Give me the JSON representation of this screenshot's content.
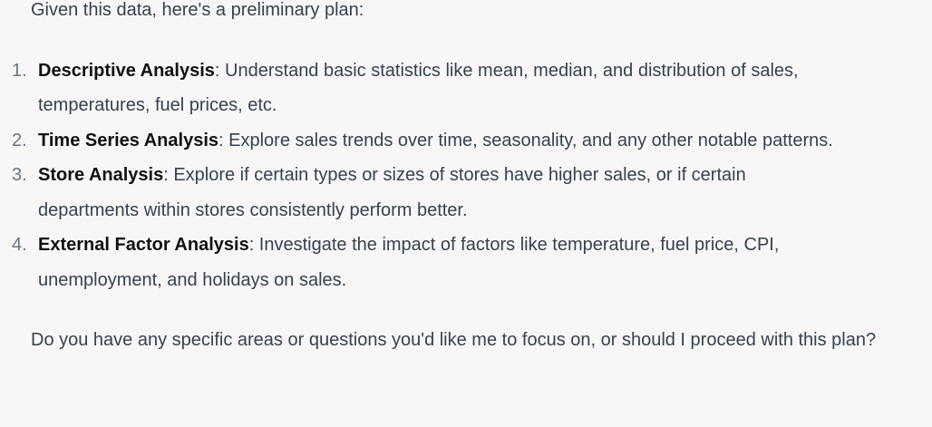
{
  "message": {
    "intro": "Given this data, here's a preliminary plan:",
    "plan_items": [
      {
        "number": "1.",
        "title": "Descriptive Analysis",
        "text": ": Understand basic statistics like mean, median, and distribution of sales, temperatures, fuel prices, etc."
      },
      {
        "number": "2.",
        "title": "Time Series Analysis",
        "text": ": Explore sales trends over time, seasonality, and any other notable patterns."
      },
      {
        "number": "3.",
        "title": "Store Analysis",
        "text": ": Explore if certain types or sizes of stores have higher sales, or if certain departments within stores consistently perform better."
      },
      {
        "number": "4.",
        "title": "External Factor Analysis",
        "text": ": Investigate the impact of factors like temperature, fuel price, CPI, unemployment, and holidays on sales."
      }
    ],
    "closing": "Do you have any specific areas or questions you'd like me to focus on, or should I proceed with this plan?"
  },
  "colors": {
    "background": "#f7f7f8",
    "body_text": "#374151",
    "bold_text": "#111111",
    "list_number": "#6b7280"
  }
}
